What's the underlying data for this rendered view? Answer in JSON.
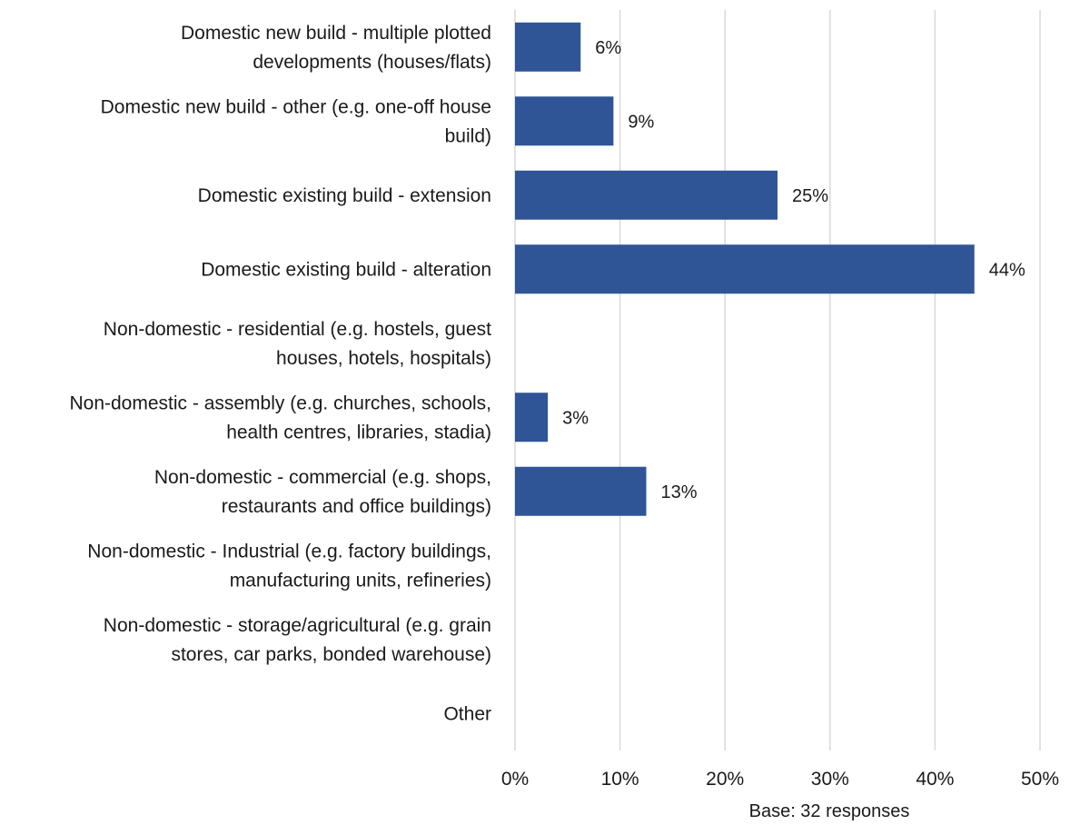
{
  "chart_data": {
    "type": "bar",
    "orientation": "horizontal",
    "categories": [
      [
        "Domestic new build - multiple plotted",
        "developments (houses/flats)"
      ],
      [
        "Domestic new build - other (e.g. one-off house",
        "build)"
      ],
      [
        "Domestic existing build - extension"
      ],
      [
        "Domestic existing build - alteration"
      ],
      [
        "Non-domestic - residential (e.g. hostels, guest",
        "houses, hotels, hospitals)"
      ],
      [
        "Non-domestic - assembly (e.g. churches, schools,",
        "health centres, libraries, stadia)"
      ],
      [
        "Non-domestic - commercial (e.g. shops,",
        "restaurants and office buildings)"
      ],
      [
        "Non-domestic - Industrial (e.g. factory buildings,",
        "manufacturing units, refineries)"
      ],
      [
        "Non-domestic - storage/agricultural (e.g. grain",
        "stores, car parks, bonded warehouse)"
      ],
      [
        "Other"
      ]
    ],
    "values": [
      6.25,
      9.375,
      25,
      43.75,
      null,
      3.125,
      12.5,
      null,
      null,
      null
    ],
    "data_labels": [
      "6%",
      "9%",
      "25%",
      "44%",
      "",
      "3%",
      "13%",
      "",
      "",
      ""
    ],
    "xlim": [
      0,
      50
    ],
    "x_ticks": [
      0,
      10,
      20,
      30,
      40,
      50
    ],
    "x_tick_labels": [
      "0%",
      "10%",
      "20%",
      "30%",
      "40%",
      "50%"
    ],
    "grid": "vertical",
    "bar_color": "#2f5597",
    "grid_color": "#d9d9d9",
    "legend": "none",
    "note": "Base: 32 responses"
  }
}
